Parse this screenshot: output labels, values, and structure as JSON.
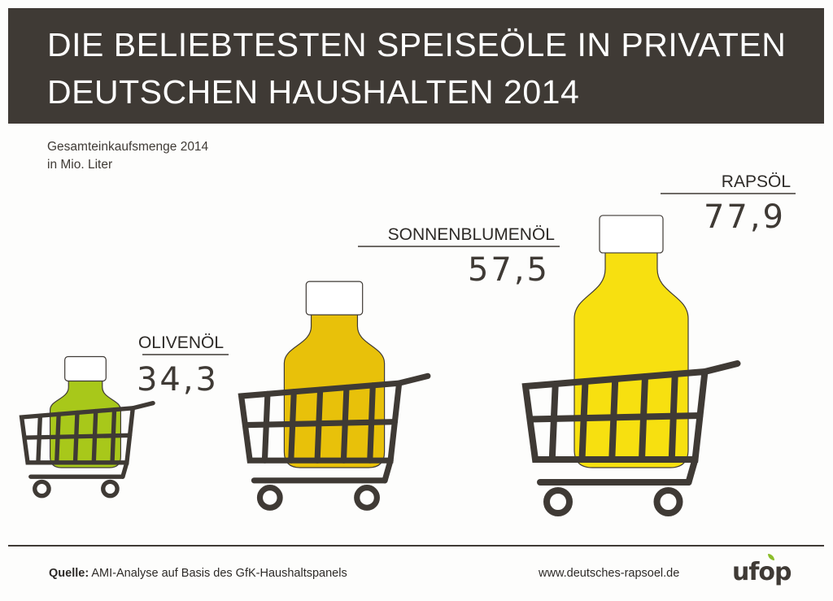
{
  "header": {
    "title_line1": "DIE BELIEBTESTEN SPEISEÖLE IN PRIVATEN",
    "title_line2": "DEUTSCHEN HAUSHALTEN 2014"
  },
  "subtitle": {
    "line1": "Gesamteinkaufsmenge 2014",
    "line2": "in Mio. Liter"
  },
  "chart_data": {
    "type": "bar",
    "categories": [
      "OLIVENÖL",
      "SONNENBLUMENÖL",
      "RAPSÖL"
    ],
    "values": [
      34.3,
      57.5,
      77.9
    ],
    "value_labels": [
      "34,3",
      "57,5",
      "77,9"
    ],
    "colors": [
      "#a8c81a",
      "#e8c10a",
      "#f7e010"
    ],
    "title": "DIE BELIEBTESTEN SPEISEÖLE IN PRIVATEN DEUTSCHEN HAUSHALTEN 2014",
    "ylabel": "Gesamteinkaufsmenge 2014 in Mio. Liter",
    "ylim": [
      0,
      80
    ],
    "grid": false,
    "legend": "none"
  },
  "footer": {
    "source_label": "Quelle:",
    "source_text": " AMI-Analyse auf Basis des GfK-Haushaltspanels",
    "website": "www.deutsches-rapsoel.de",
    "logo": "ufop"
  },
  "colors": {
    "header_bg": "#3f3a35",
    "dark": "#3f3a35"
  }
}
